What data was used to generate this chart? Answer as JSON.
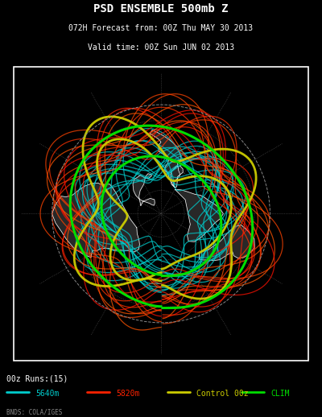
{
  "title_line1": "PSD ENSEMBLE 500mb Z",
  "title_line2": "072H Forecast from: 00Z Thu MAY 30 2013",
  "title_line3": "Valid time: 00Z Sun JUN 02 2013",
  "legend_text": "00z Runs:(15)",
  "legend_items": [
    {
      "label": "5640m",
      "color": "#00CCCC"
    },
    {
      "label": "5820m",
      "color": "#FF2200"
    },
    {
      "label": "Control 00z",
      "color": "#CCCC00"
    },
    {
      "label": "CLIM",
      "color": "#00DD00"
    }
  ],
  "credit": "BNDS: COLA/IGES",
  "bg_color": "#000000",
  "text_color": "#FFFFFF",
  "fig_width": 4.0,
  "fig_height": 5.18,
  "dpi": 100,
  "n_ensemble": 15,
  "contour_5640_color": "#00CCCC",
  "contour_5820_color": "#FF2200",
  "control_color": "#CCCC00",
  "clim_color": "#00DD00",
  "grid_color": "#555555"
}
